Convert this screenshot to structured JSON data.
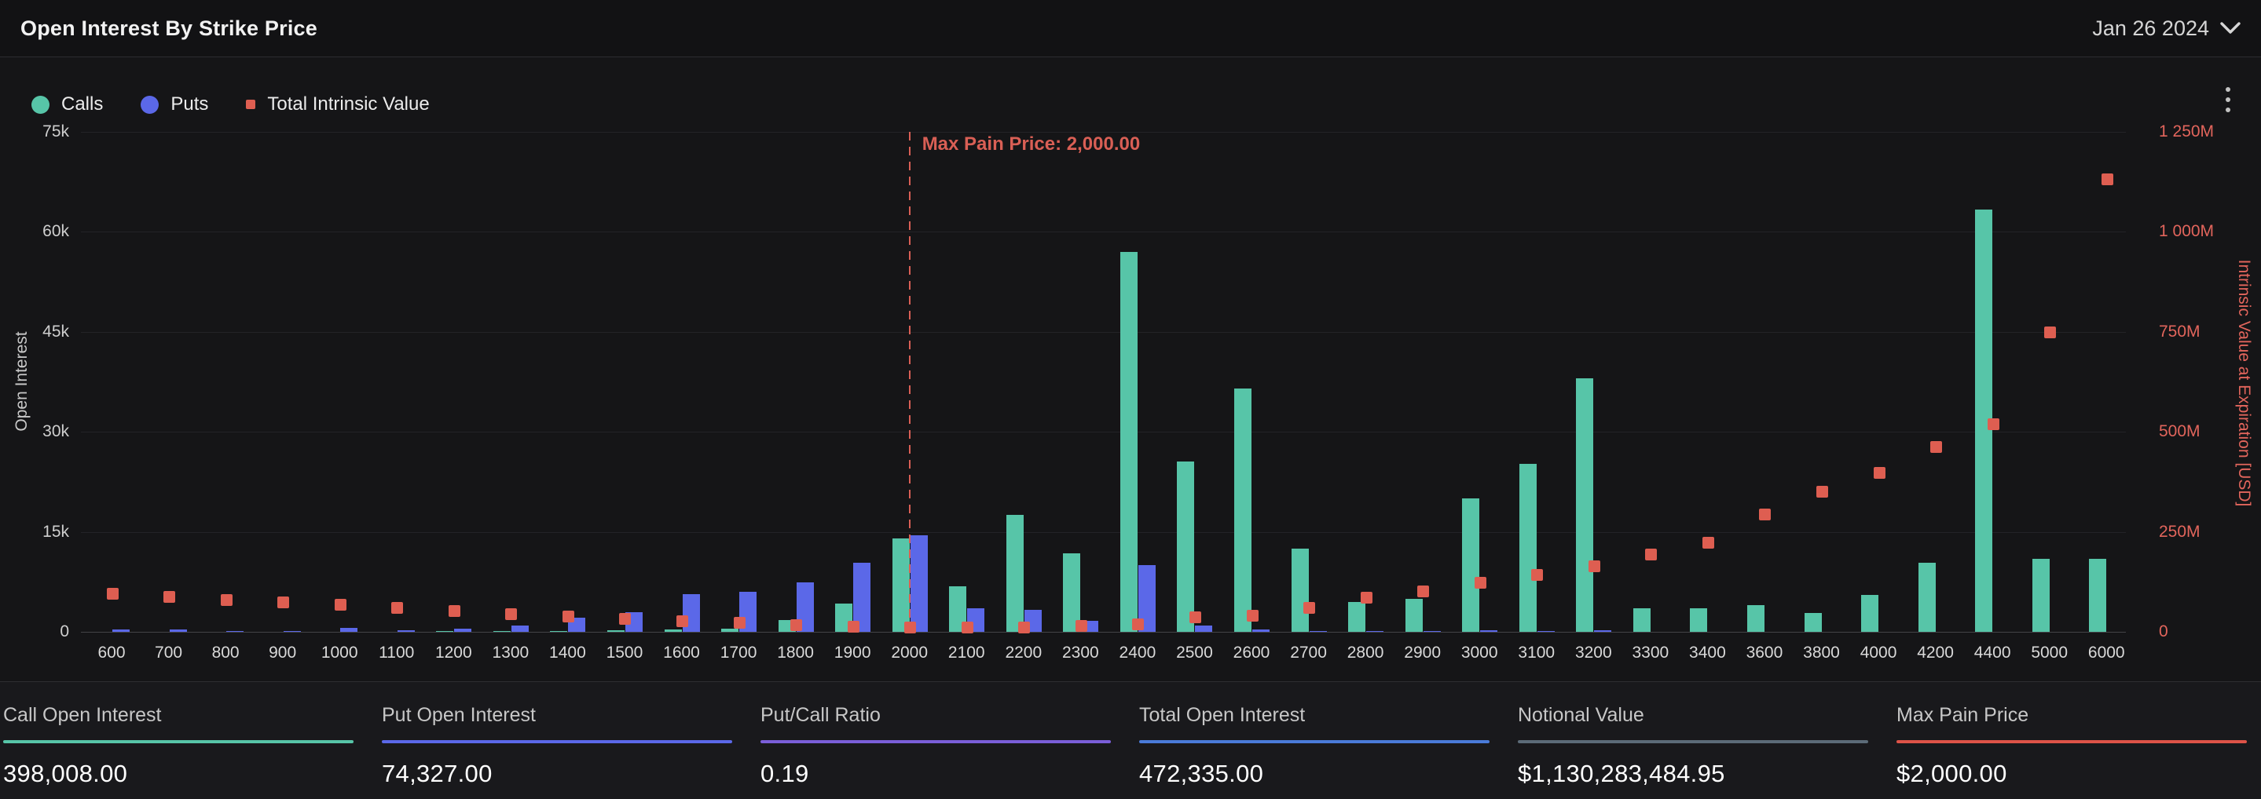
{
  "header": {
    "title": "Open Interest By Strike Price",
    "date_selected": "Jan 26 2024"
  },
  "legend": [
    {
      "label": "Calls",
      "color": "#57c5a8",
      "shape": "circle"
    },
    {
      "label": "Puts",
      "color": "#5b68e8",
      "shape": "circle"
    },
    {
      "label": "Total Intrinsic Value",
      "color": "#de5e51",
      "shape": "square"
    }
  ],
  "chart_data": {
    "type": "bar",
    "title": "Open Interest By Strike Price",
    "categories": [
      "600",
      "700",
      "800",
      "900",
      "1000",
      "1100",
      "1200",
      "1300",
      "1400",
      "1500",
      "1600",
      "1700",
      "1800",
      "1900",
      "2000",
      "2100",
      "2200",
      "2300",
      "2400",
      "2500",
      "2600",
      "2700",
      "2800",
      "2900",
      "3000",
      "3100",
      "3200",
      "3300",
      "3400",
      "3600",
      "3800",
      "4000",
      "4200",
      "4400",
      "5000",
      "6000"
    ],
    "series": [
      {
        "name": "Calls",
        "type": "bar",
        "axis": "left",
        "color": "#57c5a8",
        "values": [
          0,
          0,
          0,
          0,
          0,
          0,
          100,
          100,
          100,
          200,
          300,
          500,
          1800,
          4200,
          14000,
          6800,
          17500,
          11800,
          57000,
          25500,
          36500,
          12500,
          4500,
          5000,
          20000,
          25200,
          38000,
          3500,
          3500,
          4000,
          2800,
          5500,
          10400,
          63300,
          11000,
          10900
        ]
      },
      {
        "name": "Puts",
        "type": "bar",
        "axis": "left",
        "color": "#5b68e8",
        "values": [
          400,
          400,
          100,
          100,
          600,
          200,
          500,
          1000,
          2100,
          3000,
          5700,
          6000,
          7400,
          10400,
          14500,
          3500,
          3300,
          1600,
          10000,
          900,
          300,
          100,
          100,
          100,
          200,
          100,
          200,
          0,
          0,
          0,
          0,
          0,
          0,
          0,
          0,
          0
        ]
      },
      {
        "name": "Total Intrinsic Value",
        "type": "scatter",
        "axis": "right",
        "unit": "M USD",
        "color": "#de5e51",
        "values": [
          95,
          88,
          80,
          73,
          67,
          59,
          52,
          44,
          38,
          33,
          26,
          22,
          16,
          13,
          10,
          10,
          11,
          14,
          18,
          37,
          41,
          59,
          86,
          102,
          122,
          142,
          164,
          193,
          222,
          294,
          351,
          398,
          463,
          520,
          748,
          1132
        ]
      }
    ],
    "left_axis": {
      "title": "Open Interest",
      "ticks": [
        "0",
        "15k",
        "30k",
        "45k",
        "60k",
        "75k"
      ],
      "min": 0,
      "max": 75000
    },
    "right_axis": {
      "title": "Intrinsic Value at Expiration [USD]",
      "ticks": [
        "0",
        "250M",
        "500M",
        "750M",
        "1 000M",
        "1 250M"
      ],
      "min": 0,
      "max": 1250
    },
    "annotation": {
      "label": "Max Pain Price: 2,000.00",
      "category": "2000"
    },
    "grid": true,
    "legend_position": "top-left",
    "xlabel": "",
    "ylabel": "Open Interest"
  },
  "stats": [
    {
      "label": "Call Open Interest",
      "value": "398,008.00",
      "color": "#57c5a8"
    },
    {
      "label": "Put Open Interest",
      "value": "74,327.00",
      "color": "#5b68e8"
    },
    {
      "label": "Put/Call Ratio",
      "value": "0.19",
      "color": "#7b5fd9"
    },
    {
      "label": "Total Open Interest",
      "value": "472,335.00",
      "color": "#4a7bd9"
    },
    {
      "label": "Notional Value",
      "value": "$1,130,283,484.95",
      "color": "#5c6b78"
    },
    {
      "label": "Max Pain Price",
      "value": "$2,000.00",
      "color": "#de5348"
    }
  ]
}
